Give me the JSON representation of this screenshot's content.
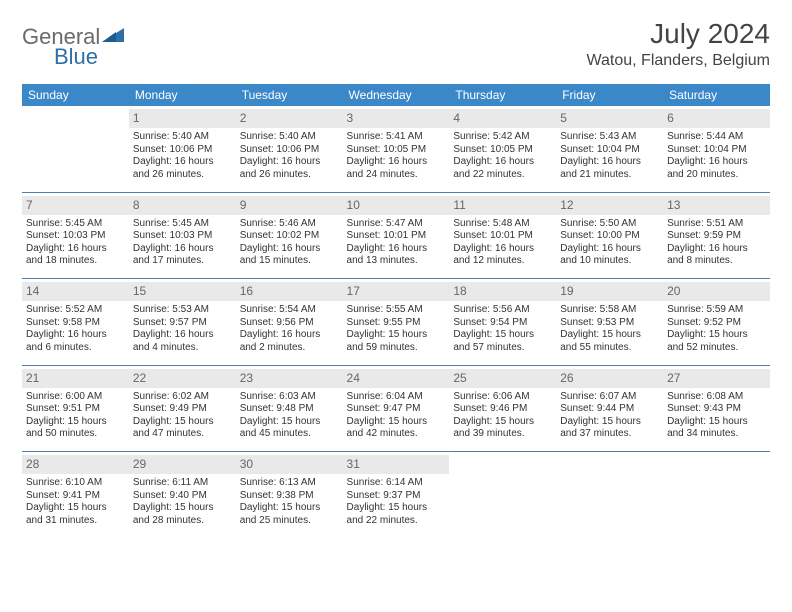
{
  "logo": {
    "general": "General",
    "blue": "Blue"
  },
  "title": "July 2024",
  "location": "Watou, Flanders, Belgium",
  "columns": [
    "Sunday",
    "Monday",
    "Tuesday",
    "Wednesday",
    "Thursday",
    "Friday",
    "Saturday"
  ],
  "header_bg": "#3b88c9",
  "header_text_color": "#ffffff",
  "daynum_bg": "#e9e9e9",
  "separator_color": "#4a7fb0",
  "text_color": "#333333",
  "font_size_body": 10,
  "font_size_header": 12,
  "weeks": [
    [
      {
        "day": "",
        "empty": true
      },
      {
        "day": "1",
        "sunrise": "Sunrise: 5:40 AM",
        "sunset": "Sunset: 10:06 PM",
        "daylight1": "Daylight: 16 hours",
        "daylight2": "and 26 minutes."
      },
      {
        "day": "2",
        "sunrise": "Sunrise: 5:40 AM",
        "sunset": "Sunset: 10:06 PM",
        "daylight1": "Daylight: 16 hours",
        "daylight2": "and 26 minutes."
      },
      {
        "day": "3",
        "sunrise": "Sunrise: 5:41 AM",
        "sunset": "Sunset: 10:05 PM",
        "daylight1": "Daylight: 16 hours",
        "daylight2": "and 24 minutes."
      },
      {
        "day": "4",
        "sunrise": "Sunrise: 5:42 AM",
        "sunset": "Sunset: 10:05 PM",
        "daylight1": "Daylight: 16 hours",
        "daylight2": "and 22 minutes."
      },
      {
        "day": "5",
        "sunrise": "Sunrise: 5:43 AM",
        "sunset": "Sunset: 10:04 PM",
        "daylight1": "Daylight: 16 hours",
        "daylight2": "and 21 minutes."
      },
      {
        "day": "6",
        "sunrise": "Sunrise: 5:44 AM",
        "sunset": "Sunset: 10:04 PM",
        "daylight1": "Daylight: 16 hours",
        "daylight2": "and 20 minutes."
      }
    ],
    [
      {
        "day": "7",
        "sunrise": "Sunrise: 5:45 AM",
        "sunset": "Sunset: 10:03 PM",
        "daylight1": "Daylight: 16 hours",
        "daylight2": "and 18 minutes."
      },
      {
        "day": "8",
        "sunrise": "Sunrise: 5:45 AM",
        "sunset": "Sunset: 10:03 PM",
        "daylight1": "Daylight: 16 hours",
        "daylight2": "and 17 minutes."
      },
      {
        "day": "9",
        "sunrise": "Sunrise: 5:46 AM",
        "sunset": "Sunset: 10:02 PM",
        "daylight1": "Daylight: 16 hours",
        "daylight2": "and 15 minutes."
      },
      {
        "day": "10",
        "sunrise": "Sunrise: 5:47 AM",
        "sunset": "Sunset: 10:01 PM",
        "daylight1": "Daylight: 16 hours",
        "daylight2": "and 13 minutes."
      },
      {
        "day": "11",
        "sunrise": "Sunrise: 5:48 AM",
        "sunset": "Sunset: 10:01 PM",
        "daylight1": "Daylight: 16 hours",
        "daylight2": "and 12 minutes."
      },
      {
        "day": "12",
        "sunrise": "Sunrise: 5:50 AM",
        "sunset": "Sunset: 10:00 PM",
        "daylight1": "Daylight: 16 hours",
        "daylight2": "and 10 minutes."
      },
      {
        "day": "13",
        "sunrise": "Sunrise: 5:51 AM",
        "sunset": "Sunset: 9:59 PM",
        "daylight1": "Daylight: 16 hours",
        "daylight2": "and 8 minutes."
      }
    ],
    [
      {
        "day": "14",
        "sunrise": "Sunrise: 5:52 AM",
        "sunset": "Sunset: 9:58 PM",
        "daylight1": "Daylight: 16 hours",
        "daylight2": "and 6 minutes."
      },
      {
        "day": "15",
        "sunrise": "Sunrise: 5:53 AM",
        "sunset": "Sunset: 9:57 PM",
        "daylight1": "Daylight: 16 hours",
        "daylight2": "and 4 minutes."
      },
      {
        "day": "16",
        "sunrise": "Sunrise: 5:54 AM",
        "sunset": "Sunset: 9:56 PM",
        "daylight1": "Daylight: 16 hours",
        "daylight2": "and 2 minutes."
      },
      {
        "day": "17",
        "sunrise": "Sunrise: 5:55 AM",
        "sunset": "Sunset: 9:55 PM",
        "daylight1": "Daylight: 15 hours",
        "daylight2": "and 59 minutes."
      },
      {
        "day": "18",
        "sunrise": "Sunrise: 5:56 AM",
        "sunset": "Sunset: 9:54 PM",
        "daylight1": "Daylight: 15 hours",
        "daylight2": "and 57 minutes."
      },
      {
        "day": "19",
        "sunrise": "Sunrise: 5:58 AM",
        "sunset": "Sunset: 9:53 PM",
        "daylight1": "Daylight: 15 hours",
        "daylight2": "and 55 minutes."
      },
      {
        "day": "20",
        "sunrise": "Sunrise: 5:59 AM",
        "sunset": "Sunset: 9:52 PM",
        "daylight1": "Daylight: 15 hours",
        "daylight2": "and 52 minutes."
      }
    ],
    [
      {
        "day": "21",
        "sunrise": "Sunrise: 6:00 AM",
        "sunset": "Sunset: 9:51 PM",
        "daylight1": "Daylight: 15 hours",
        "daylight2": "and 50 minutes."
      },
      {
        "day": "22",
        "sunrise": "Sunrise: 6:02 AM",
        "sunset": "Sunset: 9:49 PM",
        "daylight1": "Daylight: 15 hours",
        "daylight2": "and 47 minutes."
      },
      {
        "day": "23",
        "sunrise": "Sunrise: 6:03 AM",
        "sunset": "Sunset: 9:48 PM",
        "daylight1": "Daylight: 15 hours",
        "daylight2": "and 45 minutes."
      },
      {
        "day": "24",
        "sunrise": "Sunrise: 6:04 AM",
        "sunset": "Sunset: 9:47 PM",
        "daylight1": "Daylight: 15 hours",
        "daylight2": "and 42 minutes."
      },
      {
        "day": "25",
        "sunrise": "Sunrise: 6:06 AM",
        "sunset": "Sunset: 9:46 PM",
        "daylight1": "Daylight: 15 hours",
        "daylight2": "and 39 minutes."
      },
      {
        "day": "26",
        "sunrise": "Sunrise: 6:07 AM",
        "sunset": "Sunset: 9:44 PM",
        "daylight1": "Daylight: 15 hours",
        "daylight2": "and 37 minutes."
      },
      {
        "day": "27",
        "sunrise": "Sunrise: 6:08 AM",
        "sunset": "Sunset: 9:43 PM",
        "daylight1": "Daylight: 15 hours",
        "daylight2": "and 34 minutes."
      }
    ],
    [
      {
        "day": "28",
        "sunrise": "Sunrise: 6:10 AM",
        "sunset": "Sunset: 9:41 PM",
        "daylight1": "Daylight: 15 hours",
        "daylight2": "and 31 minutes."
      },
      {
        "day": "29",
        "sunrise": "Sunrise: 6:11 AM",
        "sunset": "Sunset: 9:40 PM",
        "daylight1": "Daylight: 15 hours",
        "daylight2": "and 28 minutes."
      },
      {
        "day": "30",
        "sunrise": "Sunrise: 6:13 AM",
        "sunset": "Sunset: 9:38 PM",
        "daylight1": "Daylight: 15 hours",
        "daylight2": "and 25 minutes."
      },
      {
        "day": "31",
        "sunrise": "Sunrise: 6:14 AM",
        "sunset": "Sunset: 9:37 PM",
        "daylight1": "Daylight: 15 hours",
        "daylight2": "and 22 minutes."
      },
      {
        "day": "",
        "empty": true
      },
      {
        "day": "",
        "empty": true
      },
      {
        "day": "",
        "empty": true
      }
    ]
  ]
}
